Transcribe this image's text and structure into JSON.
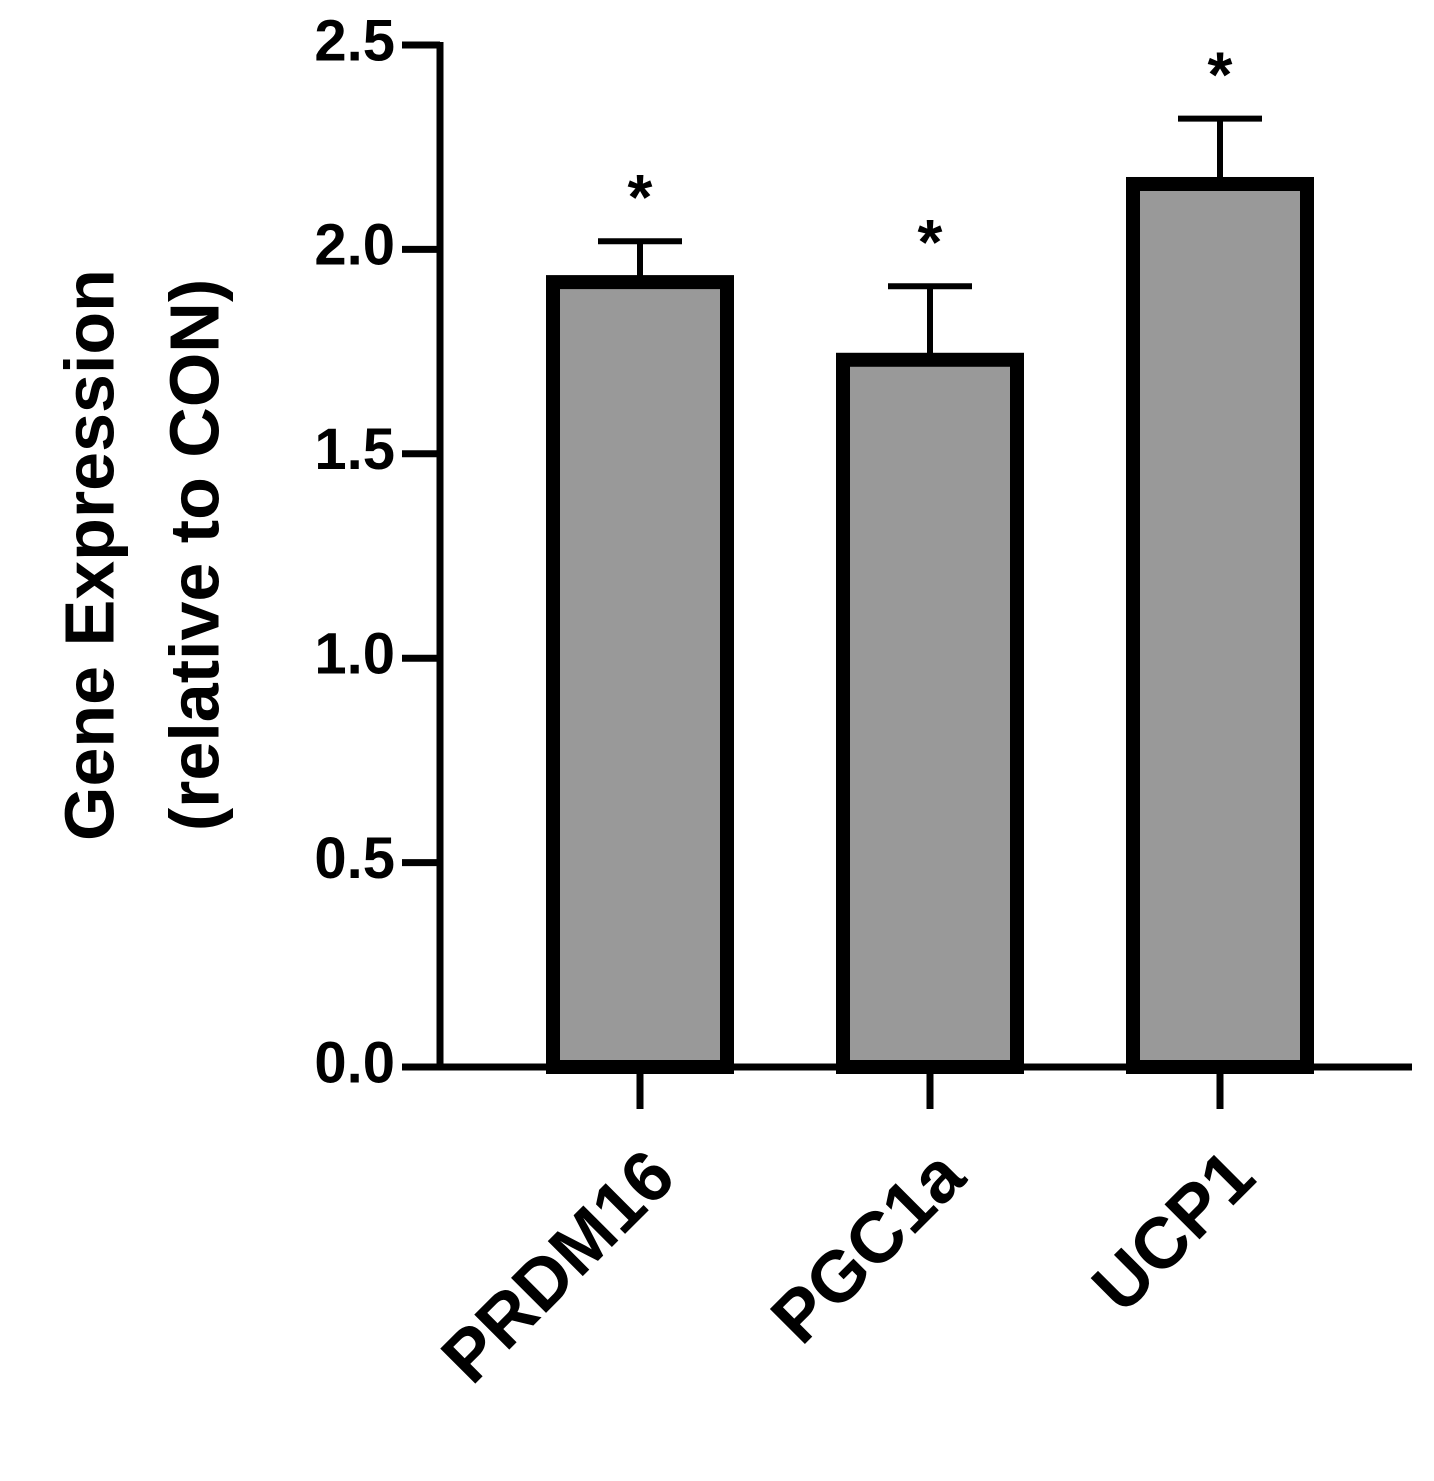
{
  "chart_data": {
    "type": "bar",
    "ylabel": [
      "Gene Expression",
      "(relative to CON)"
    ],
    "categories": [
      "PRDM16",
      "PGC1a",
      "UCP1"
    ],
    "values": [
      1.92,
      1.73,
      2.16
    ],
    "errors": [
      0.1,
      0.18,
      0.16
    ],
    "annotations": [
      "*",
      "*",
      "*"
    ],
    "color": "#999999",
    "ylim": [
      0,
      2.5
    ],
    "yticks": [
      {
        "value": 0,
        "label": "0.0"
      },
      0.5,
      {
        "value": 1,
        "label": "1.0"
      },
      1.5,
      {
        "value": 2,
        "label": "2.0"
      },
      2.5
    ],
    "grid": false
  }
}
